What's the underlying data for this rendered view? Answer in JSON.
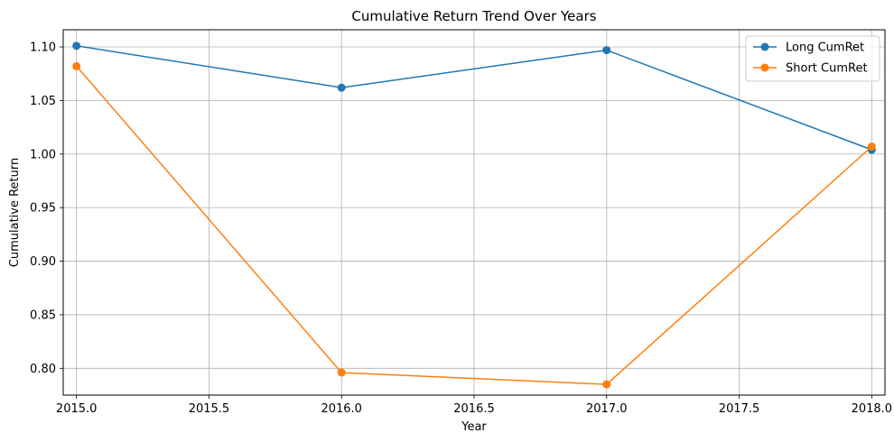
{
  "chart_data": {
    "type": "line",
    "title": "Cumulative Return Trend Over Years",
    "xlabel": "Year",
    "ylabel": "Cumulative Return",
    "x": [
      2015,
      2016,
      2017,
      2018
    ],
    "xticks": [
      "2015.0",
      "2015.5",
      "2016.0",
      "2016.5",
      "2017.0",
      "2017.5",
      "2018.0"
    ],
    "yticks": [
      "0.80",
      "0.85",
      "0.90",
      "0.95",
      "1.00",
      "1.05",
      "1.10"
    ],
    "xlim": [
      2014.95,
      2018.05
    ],
    "ylim": [
      0.775,
      1.116
    ],
    "grid": true,
    "legend_position": "top-right",
    "series": [
      {
        "name": "Long CumRet",
        "color": "#1f77b4",
        "values": [
          1.101,
          1.062,
          1.097,
          1.004
        ]
      },
      {
        "name": "Short CumRet",
        "color": "#ff7f0e",
        "values": [
          1.082,
          0.796,
          0.785,
          1.007
        ]
      }
    ]
  }
}
